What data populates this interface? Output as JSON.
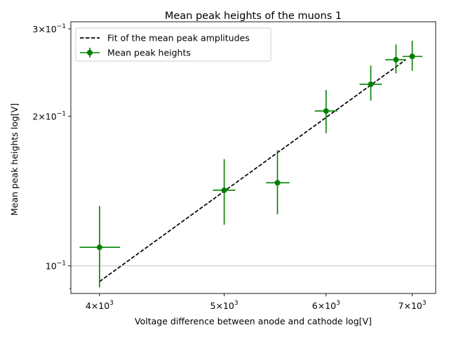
{
  "chart_data": {
    "type": "scatter",
    "title": "Mean peak heights of the muons 1",
    "xlabel": "Voltage difference between anode and cathode log[V]",
    "ylabel": "Mean peak heights log[V]",
    "xscale": "log",
    "yscale": "log",
    "xlim": [
      3800,
      7300
    ],
    "ylim": [
      0.088,
      0.31
    ],
    "grid": "horizontal line at 10^-1 only",
    "legend_position": "top-left",
    "x_ticks": [
      {
        "value": 4000,
        "base": "4×10",
        "exp": "3"
      },
      {
        "value": 5000,
        "base": "5×10",
        "exp": "3"
      },
      {
        "value": 6000,
        "base": "6×10",
        "exp": "3"
      },
      {
        "value": 7000,
        "base": "7×10",
        "exp": "3"
      }
    ],
    "y_ticks": [
      {
        "value": 0.1,
        "base": "10",
        "exp": "−1"
      },
      {
        "value": 0.2,
        "base": "2×10",
        "exp": "−1"
      },
      {
        "value": 0.3,
        "base": "3×10",
        "exp": "−1"
      }
    ],
    "series": [
      {
        "name": "Fit of the mean peak amplitudes",
        "kind": "line",
        "style": "dashed",
        "color": "#000000",
        "x": [
          4000,
          6920
        ],
        "y": [
          0.093,
          0.26
        ]
      },
      {
        "name": "Mean peak heights",
        "kind": "errorbar",
        "color": "#008000",
        "points": [
          {
            "x": 4000,
            "y": 0.109,
            "xerr": [
              3860,
              4150
            ],
            "yerr": [
              0.0905,
              0.132
            ]
          },
          {
            "x": 5000,
            "y": 0.142,
            "xerr": [
              4900,
              5100
            ],
            "yerr": [
              0.121,
              0.164
            ]
          },
          {
            "x": 5500,
            "y": 0.147,
            "xerr": [
              5390,
              5620
            ],
            "yerr": [
              0.127,
              0.171
            ]
          },
          {
            "x": 6000,
            "y": 0.205,
            "xerr": [
              5880,
              6120
            ],
            "yerr": [
              0.185,
              0.226
            ]
          },
          {
            "x": 6500,
            "y": 0.232,
            "xerr": [
              6370,
              6630
            ],
            "yerr": [
              0.215,
              0.253
            ]
          },
          {
            "x": 6800,
            "y": 0.26,
            "xerr": [
              6670,
              6920
            ],
            "yerr": [
              0.244,
              0.279
            ]
          },
          {
            "x": 7000,
            "y": 0.264,
            "xerr": [
              6880,
              7130
            ],
            "yerr": [
              0.247,
              0.284
            ]
          }
        ]
      }
    ]
  }
}
